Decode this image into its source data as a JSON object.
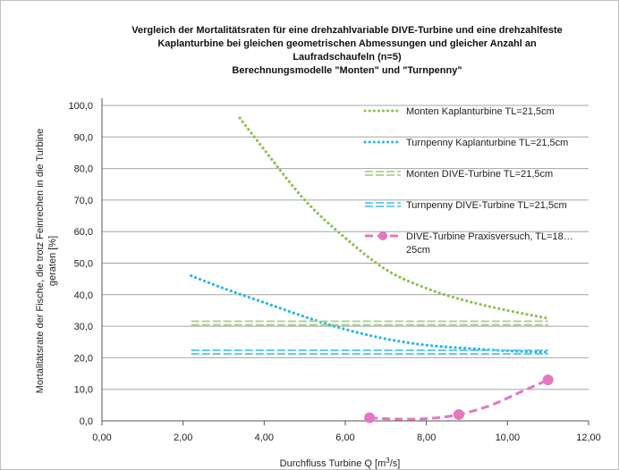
{
  "chart_data": {
    "type": "line",
    "title_lines": [
      "Vergleich der Mortalitätsraten für eine drehzahlvariable DIVE-Turbine und eine drehzahlfeste",
      "Kaplanturbine bei gleichen geometrischen Abmessungen und gleicher Anzahl an",
      "Laufradschaufeln (n=5)",
      "Berechnungsmodelle \"Monten\" und \"Turnpenny\""
    ],
    "xlabel": "Durchfluss Turbine Q [m³/s]",
    "ylabel_lines": [
      "Mortalitätsrate der Fische, die trotz Feinrechen in die Turbine",
      "geraten [%]"
    ],
    "xlim": [
      0,
      12
    ],
    "ylim": [
      0,
      100
    ],
    "x_ticks": [
      "0,00",
      "2,00",
      "4,00",
      "6,00",
      "8,00",
      "10,00",
      "12,00"
    ],
    "y_ticks": [
      "0,0",
      "10,0",
      "20,0",
      "30,0",
      "40,0",
      "50,0",
      "60,0",
      "70,0",
      "80,0",
      "90,0",
      "100,0"
    ],
    "grid": "horizontal",
    "legend_position": "right",
    "series": [
      {
        "name": "Monten Kaplanturbine TL=21,5cm",
        "color": "#8cc152",
        "style": "dotted",
        "x": [
          3.4,
          4.0,
          5.0,
          6.0,
          7.0,
          8.0,
          9.0,
          10.0,
          11.0
        ],
        "y": [
          96.0,
          86.0,
          70.0,
          58.0,
          48.0,
          42.0,
          38.0,
          35.0,
          32.5
        ]
      },
      {
        "name": "Turnpenny Kaplanturbine TL=21,5cm",
        "color": "#29b6e6",
        "style": "dotted",
        "x": [
          2.2,
          3.0,
          4.0,
          5.0,
          6.0,
          7.0,
          8.0,
          9.0,
          10.0,
          11.0
        ],
        "y": [
          46.0,
          42.0,
          37.5,
          33.0,
          29.0,
          26.0,
          24.0,
          23.0,
          22.2,
          21.8
        ]
      },
      {
        "name": "Monten DIVE-Turbine TL=21,5cm",
        "color": "#a9d08e",
        "style": "double-dash",
        "x": [
          2.2,
          11.0
        ],
        "y": [
          31.0,
          31.0
        ]
      },
      {
        "name": "Turnpenny DIVE-Turbine TL=21,5cm",
        "color": "#5bc7eb",
        "style": "double-dash",
        "x": [
          2.2,
          11.0
        ],
        "y": [
          21.8,
          21.8
        ]
      },
      {
        "name": "DIVE-Turbine Praxisversuch, TL=18…",
        "name_line2": "25cm",
        "color": "#e377c2",
        "style": "dash-marker",
        "x": [
          6.6,
          8.8,
          11.0
        ],
        "y": [
          1.0,
          2.0,
          13.0
        ],
        "curve_x": [
          6.6,
          7.2,
          8.0,
          8.8,
          9.6,
          10.3,
          11.0
        ],
        "curve_y": [
          1.0,
          0.6,
          0.7,
          2.0,
          5.0,
          9.0,
          13.0
        ]
      }
    ]
  }
}
